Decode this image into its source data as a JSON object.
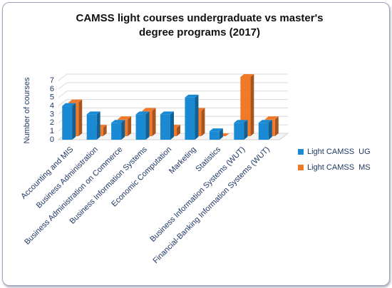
{
  "chart_data": {
    "type": "bar3d",
    "title": "CAMSS light courses undergraduate vs master's degree programs (2017)",
    "y_label": "Number of courses",
    "categories": [
      "Accounting and MIS",
      "Business Administration",
      "Business Administration on Commerce",
      "Business Information Systems",
      "Economic Computation",
      "Marketing",
      "Statistics",
      "Business Information Systems (WUT)",
      "Financial-Banking Information Systems (WUT)"
    ],
    "series": [
      {
        "name": "Light CAMSS  UG",
        "color": "#1a8ad4",
        "values": [
          4,
          3,
          2,
          3,
          3,
          5,
          1,
          2,
          2
        ]
      },
      {
        "name": "Light CAMSS  MS",
        "color": "#f07a2a",
        "values": [
          4,
          1,
          2,
          3,
          1,
          3,
          0,
          7,
          2
        ]
      }
    ],
    "ylim": [
      0,
      7
    ],
    "yticks": [
      0,
      1,
      2,
      3,
      4,
      5,
      6,
      7
    ],
    "grid": true,
    "legend": "right"
  }
}
